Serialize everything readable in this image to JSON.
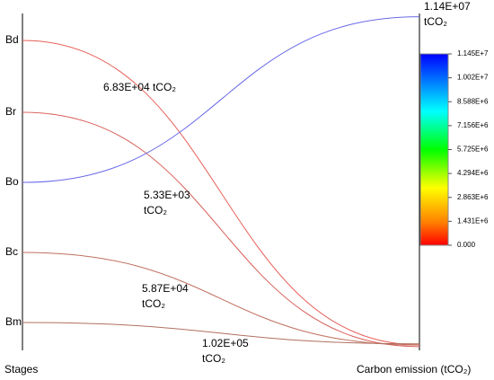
{
  "chart_data": {
    "type": "flow",
    "x_label": "Stages",
    "y_label": "Carbon emission (tCO₂)",
    "categories": [
      "Bd",
      "Br",
      "Bo",
      "Bc",
      "Bm"
    ],
    "values": [
      68300,
      5330,
      11400000,
      58700,
      102000
    ],
    "value_labels": [
      [
        "6.83E+04 tCO₂"
      ],
      [
        "5.33E+03",
        "tCO₂"
      ],
      [
        "1.14E+07",
        "tCO₂"
      ],
      [
        "5.87E+04",
        "tCO₂"
      ],
      [
        "1.02E+05",
        "tCO₂"
      ]
    ],
    "colors": [
      "#e8605a",
      "#d8605a",
      "#6a6ae8",
      "#c07060",
      "#b07060"
    ],
    "ylim": [
      0,
      11450000
    ],
    "colorbar": {
      "ticks": [
        {
          "value": 11450000,
          "label": "1.145E+7"
        },
        {
          "value": 10020000,
          "label": "1.002E+7"
        },
        {
          "value": 8588000,
          "label": "8.588E+6"
        },
        {
          "value": 7156000,
          "label": "7.156E+6"
        },
        {
          "value": 5725000,
          "label": "5.725E+6"
        },
        {
          "value": 4294000,
          "label": "4.294E+6"
        },
        {
          "value": 2863000,
          "label": "2.863E+6"
        },
        {
          "value": 1431000,
          "label": "1.431E+6"
        },
        {
          "value": 0,
          "label": "0.000"
        }
      ]
    }
  }
}
